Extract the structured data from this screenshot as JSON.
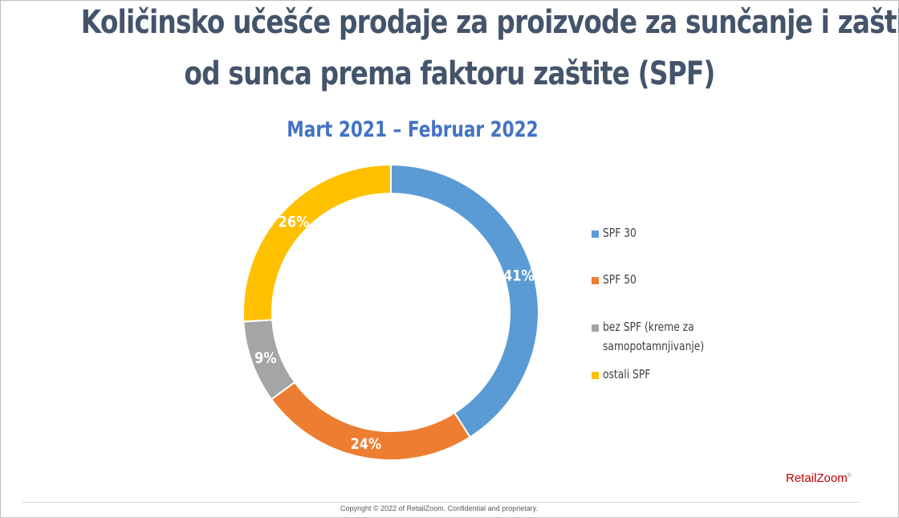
{
  "title_line1": "Količinsko učešće prodaje za proizvode za sunčanje i zaštitu",
  "title_line2": "od sunca prema faktoru zaštite (SPF)",
  "subtitle": "Mart 2021 – Februar 2022",
  "chart_data": {
    "type": "pie",
    "variant": "donut",
    "title": "Količinsko učešće prodaje za proizvode za sunčanje i zaštitu od sunca prema faktoru zaštite (SPF)",
    "subtitle": "Mart 2021 – Februar 2022",
    "legend_position": "right",
    "slices": [
      {
        "label": "SPF 30",
        "legend_lines": [
          "SPF 30"
        ],
        "value": 41,
        "value_label": "41%",
        "color": "#5b9bd5"
      },
      {
        "label": "SPF 50",
        "legend_lines": [
          "SPF 50"
        ],
        "value": 24,
        "value_label": "24%",
        "color": "#ed7d31"
      },
      {
        "label": "bez SPF (kreme za samopotamnjivanje)",
        "legend_lines": [
          "bez SPF (kreme za",
          "samopotamnjivanje)"
        ],
        "value": 9,
        "value_label": "9%",
        "color": "#a5a5a5"
      },
      {
        "label": "ostali SPF",
        "legend_lines": [
          "ostali SPF"
        ],
        "value": 26,
        "value_label": "26%",
        "color": "#ffc000"
      }
    ]
  },
  "logo": {
    "text": "RetailZoom",
    "mark": "©"
  },
  "copyright": "Copyright © 2022 of RetailZoom. Confidential and proprietary."
}
